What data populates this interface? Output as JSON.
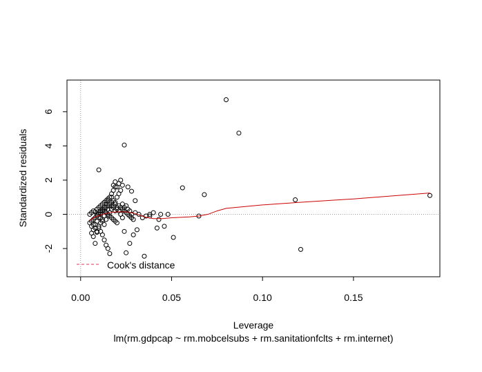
{
  "chart_data": {
    "type": "scatter",
    "title": "",
    "xlabel": "Leverage",
    "ylabel": "Standardized residuals",
    "subtitle": "lm(rm.gdpcap ~ rm.mobcelsubs + rm.sanitationfclts + rm.internet)",
    "xlim": [
      -0.0075,
      0.1975
    ],
    "ylim": [
      -3.65,
      7.85
    ],
    "x_ticks": [
      0.0,
      0.05,
      0.1,
      0.15
    ],
    "x_tick_labels": [
      "0.00",
      "0.05",
      "0.10",
      "0.15"
    ],
    "y_ticks": [
      -2,
      0,
      2,
      4,
      6
    ],
    "y_tick_labels": [
      "-2",
      "0",
      "2",
      "4",
      "6"
    ],
    "legend": {
      "position": "bottom-left",
      "entries": [
        {
          "label": "Cook's distance",
          "color": "#e0305c",
          "style": "dashed"
        }
      ]
    },
    "reference_lines": {
      "vertical_x": 0,
      "horizontal_y": 0,
      "style": "dotted",
      "color": "#999999"
    },
    "smoother": {
      "name": "",
      "color": "#cc0000",
      "x": [
        0.005,
        0.008,
        0.012,
        0.016,
        0.02,
        0.025,
        0.03,
        0.035,
        0.04,
        0.045,
        0.05,
        0.06,
        0.065,
        0.07,
        0.075,
        0.08,
        0.085,
        0.09,
        0.1,
        0.12,
        0.15,
        0.192
      ],
      "y": [
        -0.35,
        -0.15,
        0.0,
        0.1,
        0.15,
        0.15,
        0.05,
        -0.15,
        -0.25,
        -0.25,
        -0.2,
        -0.15,
        -0.1,
        0.0,
        0.2,
        0.35,
        0.4,
        0.45,
        0.55,
        0.7,
        0.9,
        1.25
      ]
    },
    "points": {
      "x": [
        0.08,
        0.087,
        0.024,
        0.01,
        0.056,
        0.068,
        0.118,
        0.192,
        0.121,
        0.035,
        0.051,
        0.065,
        0.048,
        0.043,
        0.042,
        0.038,
        0.046,
        0.024,
        0.025,
        0.027,
        0.029,
        0.031,
        0.03,
        0.028,
        0.026,
        0.023,
        0.022,
        0.021,
        0.02,
        0.019,
        0.018,
        0.017,
        0.016,
        0.015,
        0.014,
        0.013,
        0.012,
        0.011,
        0.01,
        0.009,
        0.008,
        0.007,
        0.006,
        0.005,
        0.005,
        0.006,
        0.007,
        0.008,
        0.009,
        0.01,
        0.011,
        0.012,
        0.013,
        0.014,
        0.015,
        0.016,
        0.017,
        0.018,
        0.019,
        0.02,
        0.021,
        0.022,
        0.023,
        0.024,
        0.025,
        0.026,
        0.027,
        0.028,
        0.029,
        0.03,
        0.032,
        0.034,
        0.036,
        0.038,
        0.04,
        0.044,
        0.011,
        0.012,
        0.013,
        0.014,
        0.015,
        0.016,
        0.017,
        0.018,
        0.019,
        0.02,
        0.021,
        0.022,
        0.023,
        0.024,
        0.025,
        0.026,
        0.027,
        0.028,
        0.009,
        0.01,
        0.011,
        0.012,
        0.013,
        0.014,
        0.015,
        0.016,
        0.017,
        0.018,
        0.019,
        0.02,
        0.006,
        0.007,
        0.008,
        0.009,
        0.01,
        0.011,
        0.012,
        0.013,
        0.014,
        0.015,
        0.016,
        0.017,
        0.018,
        0.019,
        0.02,
        0.021,
        0.022,
        0.023,
        0.006,
        0.007,
        0.008,
        0.009,
        0.01,
        0.011,
        0.012,
        0.013,
        0.014,
        0.015,
        0.016,
        0.017,
        0.018,
        0.019,
        0.007,
        0.008,
        0.009,
        0.01,
        0.011,
        0.012,
        0.013,
        0.014,
        0.015
      ],
      "y": [
        6.7,
        4.75,
        4.05,
        2.6,
        1.55,
        1.15,
        0.85,
        1.1,
        -2.05,
        -2.45,
        -1.35,
        -0.1,
        0.0,
        -0.3,
        -0.8,
        -0.1,
        -0.7,
        -1.0,
        -2.25,
        -1.7,
        -1.2,
        -0.9,
        0.8,
        1.35,
        1.6,
        1.7,
        2.0,
        1.8,
        1.6,
        1.9,
        1.7,
        1.0,
        -2.3,
        -2.0,
        -1.8,
        -1.5,
        -1.2,
        -1.0,
        -0.8,
        -1.05,
        -1.7,
        -1.3,
        -1.1,
        -0.5,
        0.0,
        0.1,
        0.2,
        0.15,
        0.3,
        0.4,
        0.5,
        0.6,
        0.7,
        0.8,
        0.9,
        0.6,
        0.5,
        0.4,
        0.2,
        0.3,
        0.5,
        0.4,
        0.3,
        0.2,
        0.1,
        0.0,
        -0.1,
        -0.2,
        -0.3,
        0.1,
        0.0,
        -0.2,
        -0.1,
        0.0,
        0.1,
        0.0,
        -0.2,
        -0.4,
        -0.6,
        -0.3,
        -0.1,
        0.1,
        0.3,
        0.5,
        0.7,
        1.0,
        1.2,
        1.4,
        0.6,
        0.4,
        0.5,
        0.3,
        0.2,
        0.0,
        0.0,
        0.1,
        0.2,
        0.3,
        0.2,
        0.1,
        0.0,
        -0.1,
        -0.2,
        -0.3,
        -0.4,
        -0.5,
        -0.4,
        -0.3,
        -0.2,
        -0.1,
        0.0,
        0.1,
        0.2,
        0.3,
        0.4,
        0.5,
        0.6,
        0.7,
        0.8,
        0.6,
        0.4,
        0.2,
        0.0,
        -0.2,
        -0.7,
        -0.9,
        -0.6,
        -0.4,
        -0.2,
        0.0,
        0.2,
        0.4,
        0.6,
        0.8,
        1.0,
        1.2,
        1.4,
        1.6,
        -0.6,
        -0.8,
        -1.0,
        -0.7,
        -0.5,
        -0.3,
        -0.1,
        0.1,
        0.3
      ]
    }
  }
}
